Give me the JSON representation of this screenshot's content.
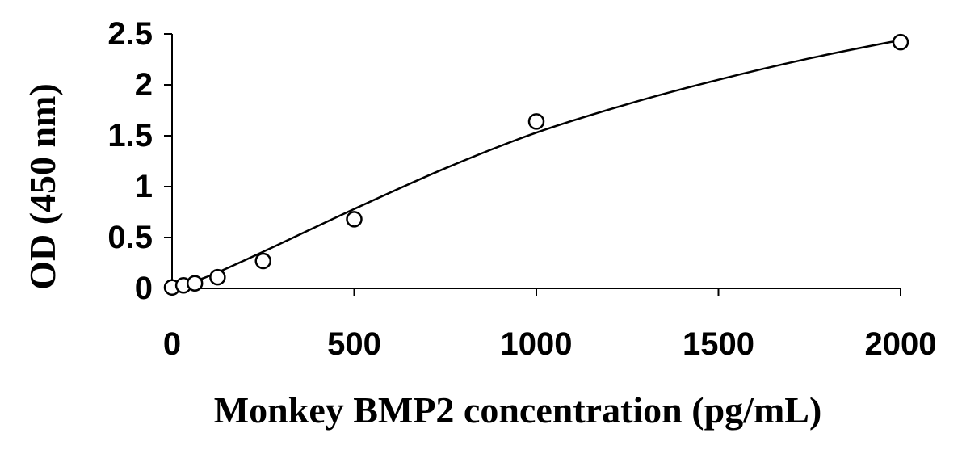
{
  "chart_data": {
    "type": "scatter",
    "title": "",
    "xlabel": "Monkey BMP2 concentration (pg/mL)",
    "ylabel": "OD (450 nm)",
    "xlim": [
      0,
      2000
    ],
    "ylim": [
      0,
      2.5
    ],
    "xticks": [
      0,
      500,
      1000,
      1500,
      2000
    ],
    "xtick_labels": [
      "0",
      "500",
      "1000",
      "1500",
      "2000"
    ],
    "yticks": [
      0,
      0.5,
      1,
      1.5,
      2,
      2.5
    ],
    "ytick_labels": [
      "0",
      "0.5",
      "1",
      "1.5",
      "2",
      "2.5"
    ],
    "grid": false,
    "legend": "none",
    "series": [
      {
        "marker": "open-circle",
        "x": [
          0,
          31.25,
          62.5,
          125,
          250,
          500,
          1000,
          2000
        ],
        "y": [
          0.01,
          0.03,
          0.05,
          0.11,
          0.27,
          0.68,
          1.64,
          2.42
        ]
      }
    ],
    "fit_curve": {
      "style": "solid-line",
      "x": [
        0,
        100,
        250,
        500,
        750,
        1000,
        1250,
        1500,
        1750,
        2000
      ],
      "y": [
        0,
        0.12,
        0.36,
        0.78,
        1.18,
        1.53,
        1.81,
        2.05,
        2.26,
        2.44
      ]
    },
    "colors": {
      "axis": "#000000",
      "marker_fill": "#ffffff",
      "marker_stroke": "#000000",
      "curve": "#000000"
    }
  }
}
